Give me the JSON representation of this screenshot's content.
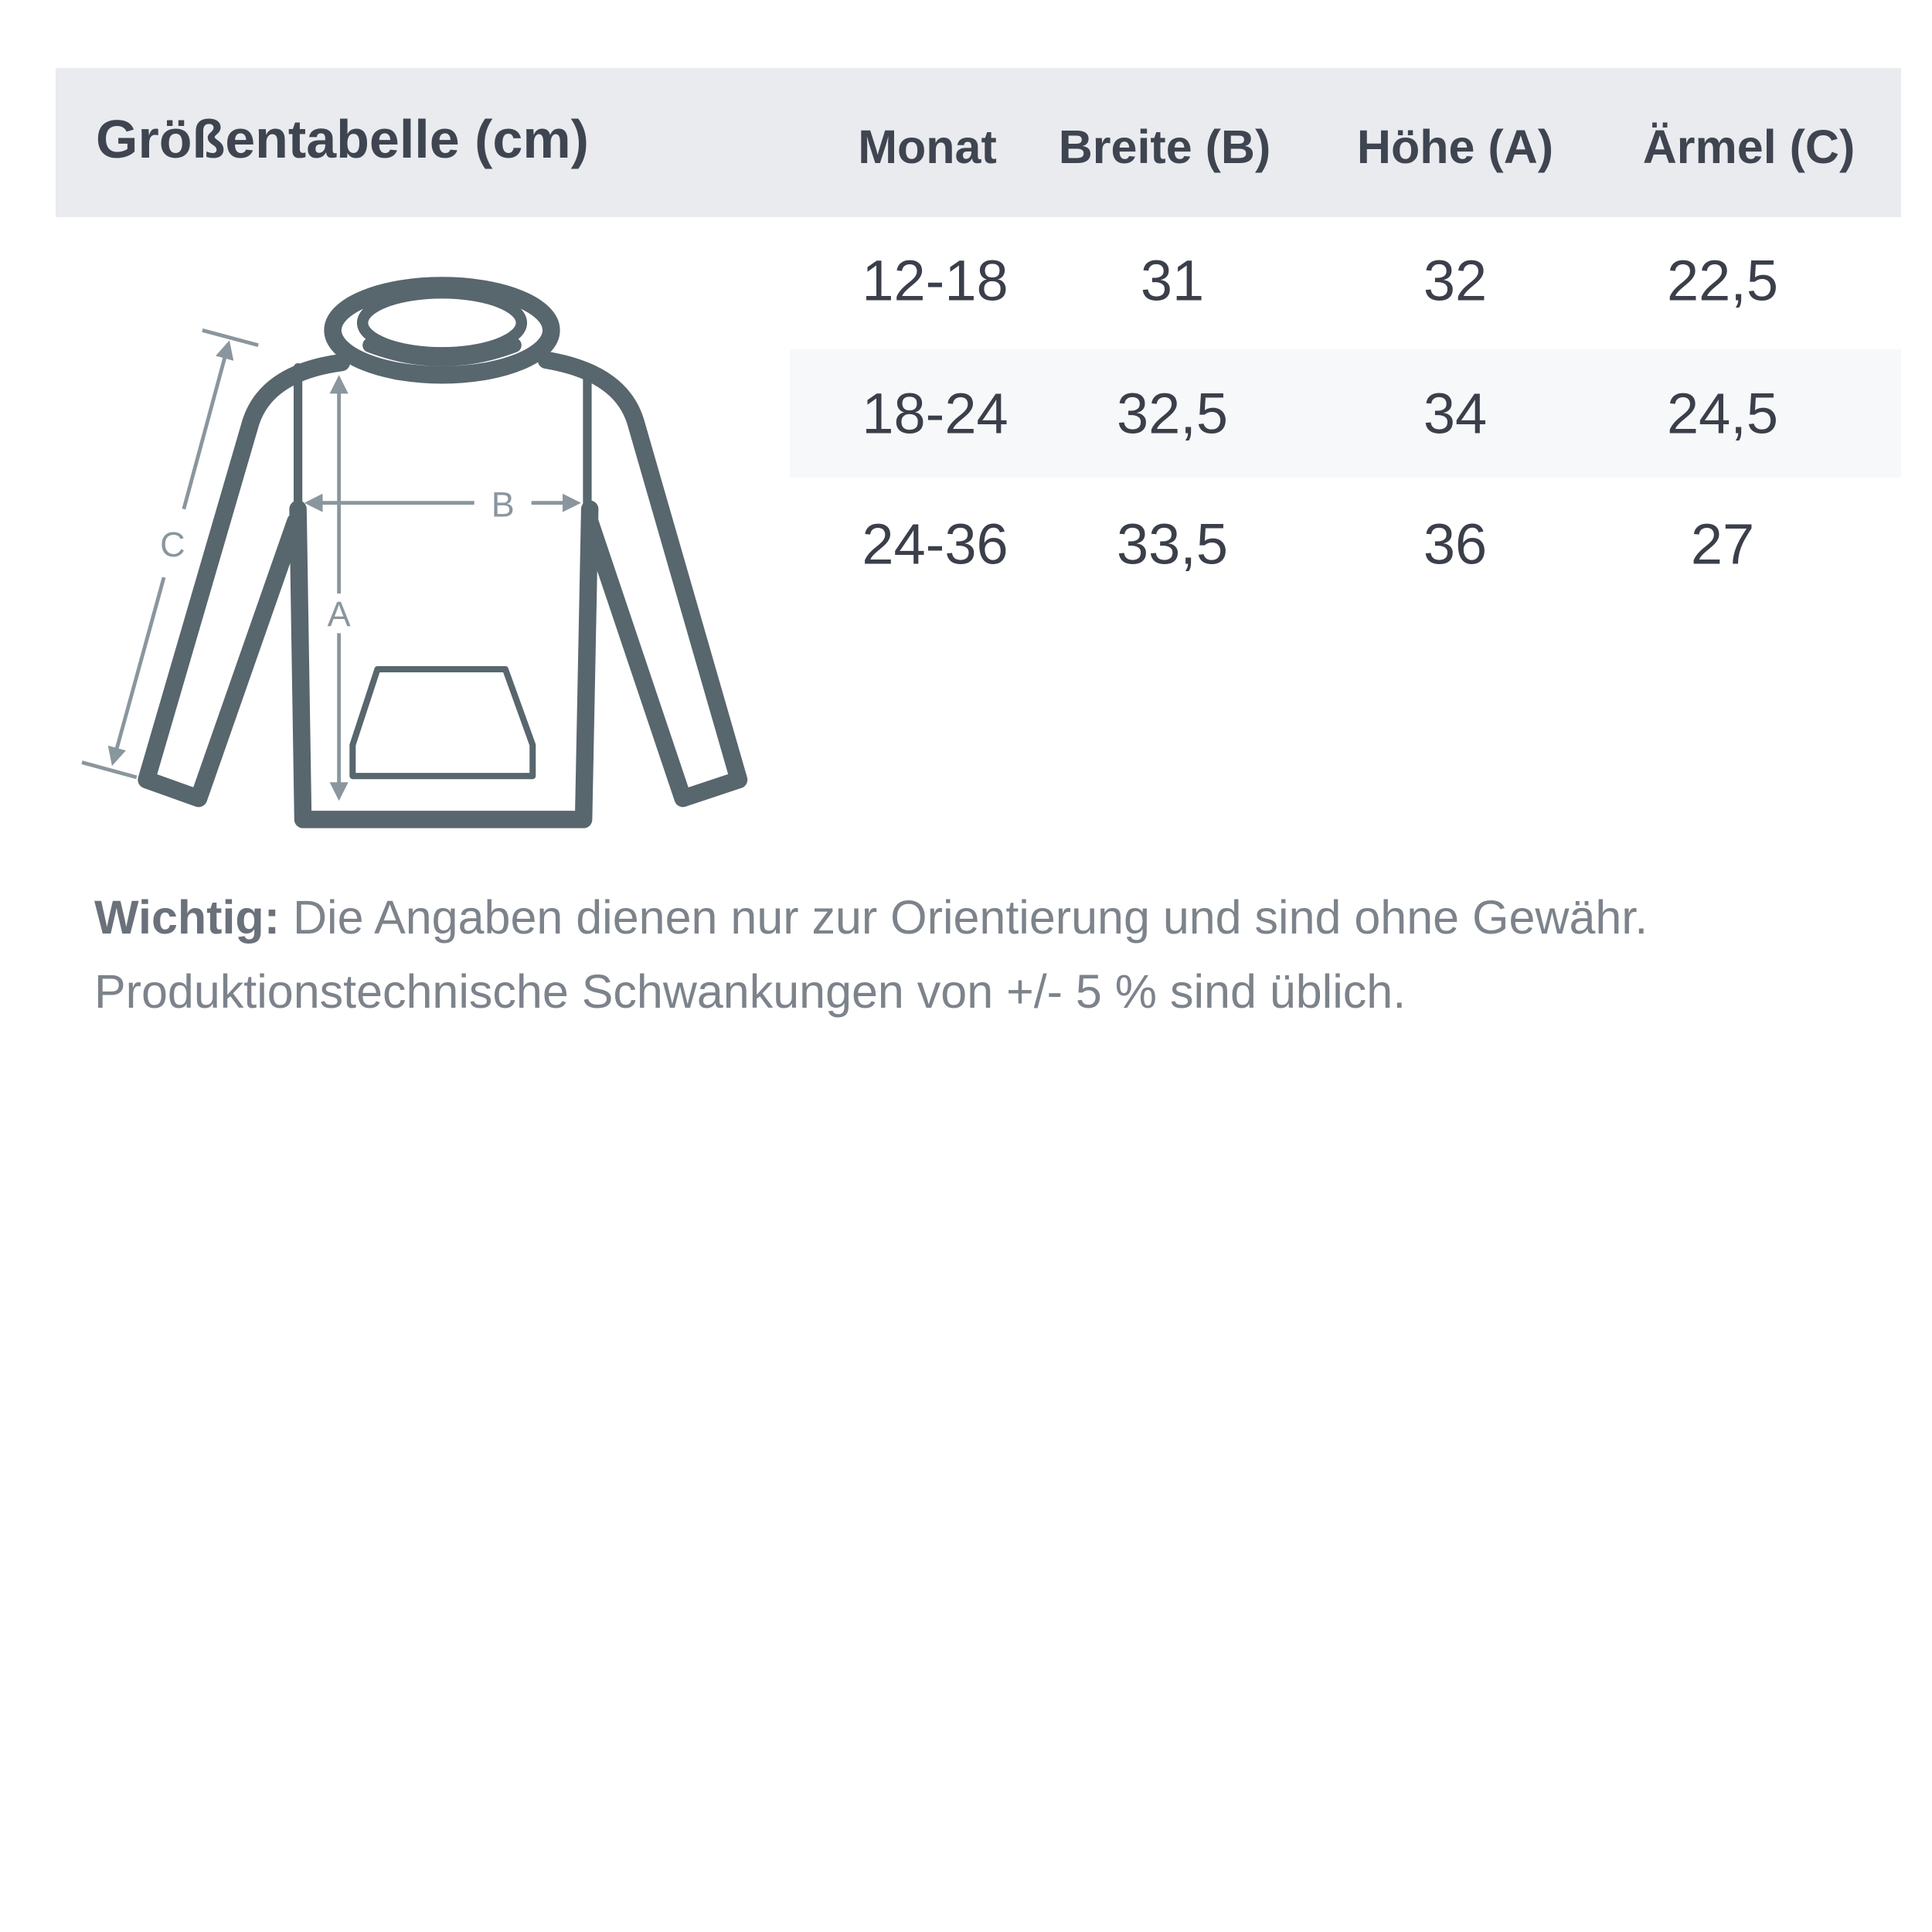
{
  "title": "Größentabelle (cm)",
  "columns": [
    "Monat",
    "Breite (B)",
    "Höhe (A)",
    "Ärmel (C)"
  ],
  "rows": [
    [
      "12-18",
      "31",
      "32",
      "22,5"
    ],
    [
      "18-24",
      "32,5",
      "34",
      "24,5"
    ],
    [
      "24-36",
      "33,5",
      "36",
      "27"
    ]
  ],
  "diagram": {
    "labels": {
      "a": "A",
      "b": "B",
      "c": "C"
    },
    "icon": "hoodie-icon"
  },
  "note": {
    "bold": "Wichtig:",
    "line1": " Die Angaben dienen nur zur Orientierung und sind ohne Gewähr.",
    "line2": "Produktionstechnische Schwankungen von +/- 5 % sind üblich."
  },
  "colors": {
    "header_bg": "#e9ebef",
    "stripe_bg": "#f7f8fa",
    "outline": "#58666d",
    "measure": "#8a969e",
    "text": "#3a3f4a"
  }
}
